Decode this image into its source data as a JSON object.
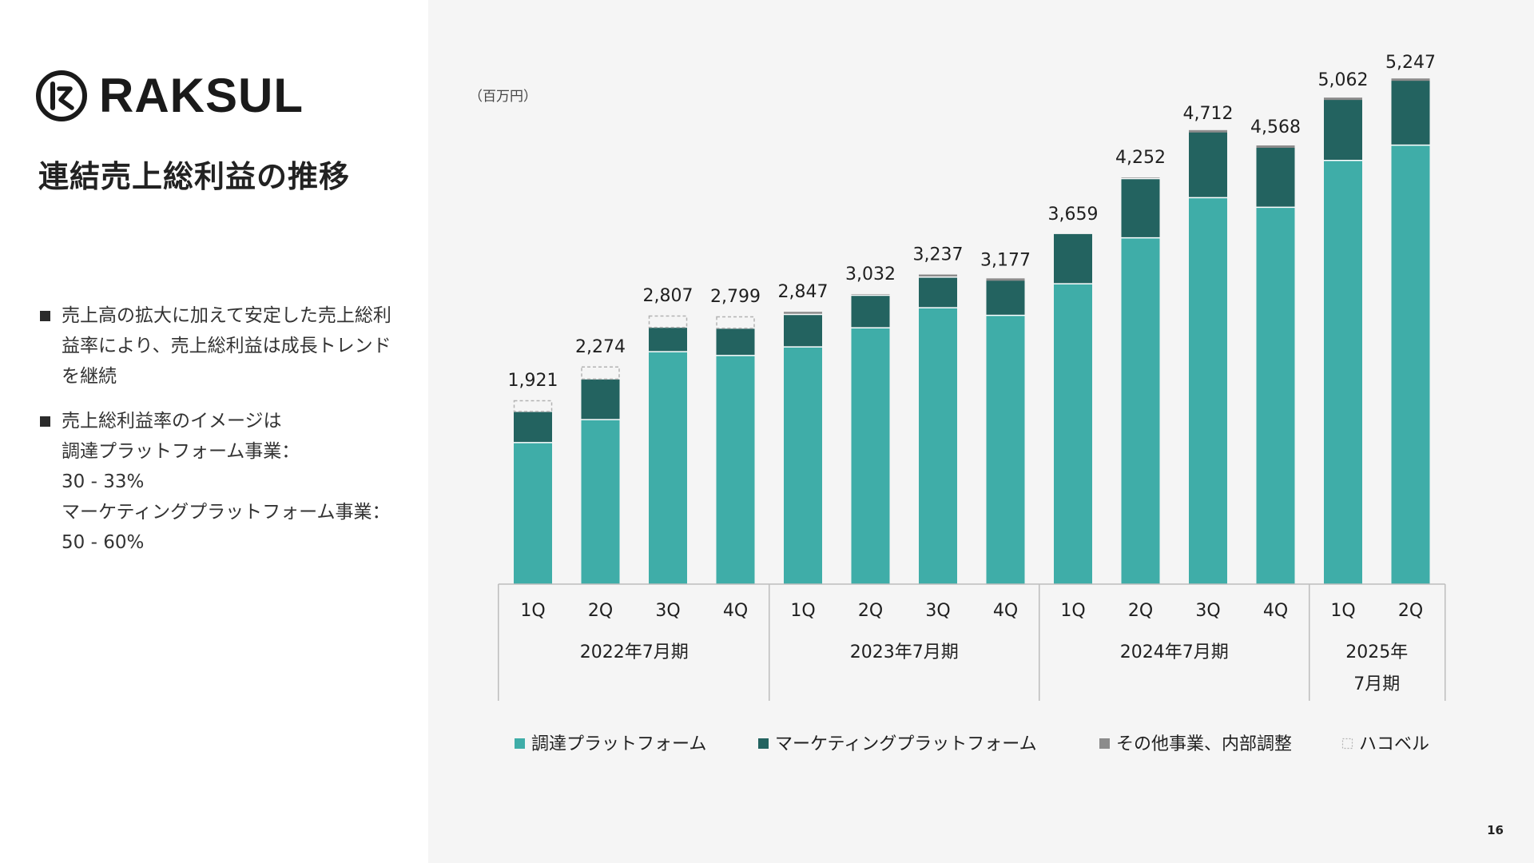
{
  "brand": {
    "name": "RAKSUL"
  },
  "page": {
    "title": "連結売上総利益の推移",
    "number": "16"
  },
  "bullets": [
    {
      "lines": [
        "売上高の拡大に加えて安定した売上総利",
        "益率により、売上総利益は成長トレンド",
        "を継続"
      ]
    },
    {
      "lines": [
        "売上総利益率のイメージは",
        "調達プラットフォーム事業：",
        "30 - 33%",
        "マーケティングプラットフォーム事業：",
        "50 - 60%"
      ]
    }
  ],
  "chart_data": {
    "type": "bar",
    "stacked": true,
    "unit": "（百万円）",
    "categories": [
      "1Q",
      "2Q",
      "3Q",
      "4Q",
      "1Q",
      "2Q",
      "3Q",
      "4Q",
      "1Q",
      "2Q",
      "3Q",
      "4Q",
      "1Q",
      "2Q"
    ],
    "groups": [
      {
        "label": "2022年7月期",
        "count": 4
      },
      {
        "label": "2023年7月期",
        "count": 4
      },
      {
        "label": "2024年7月期",
        "count": 4
      },
      {
        "label": "2025年\n7月期",
        "count": 2
      }
    ],
    "series": [
      {
        "name": "調達プラットフォーム",
        "color": "#3fada8",
        "style": "solid",
        "values": [
          1480,
          1720,
          2430,
          2390,
          2480,
          2680,
          2890,
          2810,
          3140,
          3620,
          4040,
          3940,
          4430,
          4590
        ]
      },
      {
        "name": "マーケティングプラットフォーム",
        "color": "#236360",
        "style": "solid",
        "values": [
          320,
          420,
          250,
          280,
          340,
          340,
          320,
          370,
          520,
          620,
          690,
          630,
          640,
          680
        ]
      },
      {
        "name": "その他事業、内部調整",
        "color": "#8c8c8c",
        "style": "solid",
        "values": [
          0,
          0,
          0,
          0,
          27,
          12,
          27,
          -3,
          0,
          12,
          -18,
          -2,
          -8,
          -23
        ]
      },
      {
        "name": "ハコベル",
        "color": "#b3b3b3",
        "style": "dashed",
        "values": [
          121,
          134,
          127,
          129,
          0,
          0,
          0,
          0,
          0,
          0,
          0,
          0,
          0,
          0
        ]
      }
    ],
    "totals": [
      1921,
      2274,
      2807,
      2799,
      2847,
      3032,
      3237,
      3177,
      3659,
      4252,
      4712,
      4568,
      5062,
      5247
    ],
    "total_labels": [
      "1,921",
      "2,274",
      "2,807",
      "2,799",
      "2,847",
      "3,032",
      "3,237",
      "3,177",
      "3,659",
      "4,252",
      "4,712",
      "4,568",
      "5,062",
      "5,247"
    ],
    "ylim": [
      0,
      5500
    ],
    "legend_position": "bottom"
  }
}
